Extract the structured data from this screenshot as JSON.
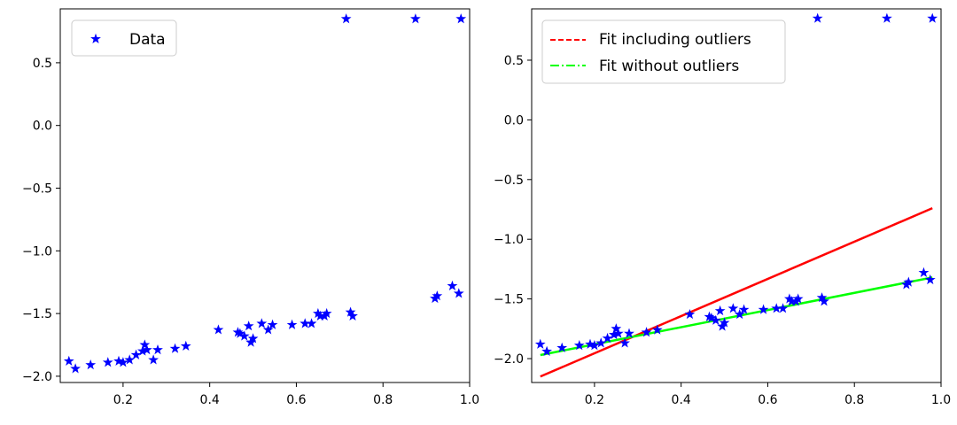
{
  "chart_data": [
    {
      "type": "scatter",
      "title": "",
      "xlabel": "",
      "ylabel": "",
      "xlim": [
        0.055,
        1.0
      ],
      "ylim": [
        -2.05,
        0.93
      ],
      "xticks": [
        0.2,
        0.4,
        0.6,
        0.8,
        1.0
      ],
      "xtick_labels": [
        "0.2",
        "0.4",
        "0.6",
        "0.8",
        "1.0"
      ],
      "yticks": [
        -2.0,
        -1.5,
        -1.0,
        -0.5,
        0.0,
        0.5
      ],
      "ytick_labels": [
        "−2.0",
        "−1.5",
        "−1.0",
        "−0.5",
        "0.0",
        "0.5"
      ],
      "grid": false,
      "legend_position": "top-left",
      "series": [
        {
          "name": "Data",
          "marker": "star",
          "color": "#0000ff",
          "x": [
            0.075,
            0.09,
            0.125,
            0.165,
            0.19,
            0.2,
            0.215,
            0.23,
            0.245,
            0.25,
            0.255,
            0.27,
            0.28,
            0.32,
            0.345,
            0.42,
            0.465,
            0.47,
            0.48,
            0.49,
            0.495,
            0.5,
            0.52,
            0.535,
            0.545,
            0.59,
            0.62,
            0.635,
            0.65,
            0.655,
            0.665,
            0.67,
            0.725,
            0.73,
            0.92,
            0.925,
            0.96,
            0.975,
            0.715,
            0.875,
            0.98
          ],
          "y": [
            -1.88,
            -1.94,
            -1.91,
            -1.89,
            -1.88,
            -1.89,
            -1.87,
            -1.83,
            -1.8,
            -1.75,
            -1.79,
            -1.87,
            -1.79,
            -1.78,
            -1.76,
            -1.63,
            -1.65,
            -1.66,
            -1.68,
            -1.6,
            -1.73,
            -1.7,
            -1.58,
            -1.63,
            -1.59,
            -1.59,
            -1.58,
            -1.58,
            -1.5,
            -1.52,
            -1.52,
            -1.5,
            -1.49,
            -1.52,
            -1.38,
            -1.36,
            -1.28,
            -1.34,
            0.85,
            0.85,
            0.85
          ]
        }
      ]
    },
    {
      "type": "line",
      "title": "",
      "xlabel": "",
      "ylabel": "",
      "xlim": [
        0.055,
        1.0
      ],
      "ylim": [
        -2.2,
        0.93
      ],
      "xticks": [
        0.2,
        0.4,
        0.6,
        0.8,
        1.0
      ],
      "xtick_labels": [
        "0.2",
        "0.4",
        "0.6",
        "0.8",
        "1.0"
      ],
      "yticks": [
        -2.0,
        -1.5,
        -1.0,
        -0.5,
        0.0,
        0.5
      ],
      "ytick_labels": [
        "−2.0",
        "−1.5",
        "−1.0",
        "−0.5",
        "0.0",
        "0.5"
      ],
      "grid": false,
      "legend_position": "top-left",
      "legend_entries": [
        {
          "name": "Fit including outliers",
          "color": "#ff0000",
          "style": "dashed"
        },
        {
          "name": "Fit without outliers",
          "color": "#00ff00",
          "style": "dashdot"
        }
      ],
      "scatter": {
        "name": "Data",
        "marker": "star",
        "color": "#0000ff",
        "x": [
          0.075,
          0.09,
          0.125,
          0.165,
          0.19,
          0.2,
          0.215,
          0.23,
          0.245,
          0.25,
          0.255,
          0.27,
          0.28,
          0.32,
          0.345,
          0.42,
          0.465,
          0.47,
          0.48,
          0.49,
          0.495,
          0.5,
          0.52,
          0.535,
          0.545,
          0.59,
          0.62,
          0.635,
          0.65,
          0.655,
          0.665,
          0.67,
          0.725,
          0.73,
          0.92,
          0.925,
          0.96,
          0.975,
          0.715,
          0.875,
          0.98
        ],
        "y": [
          -1.88,
          -1.94,
          -1.91,
          -1.89,
          -1.88,
          -1.89,
          -1.87,
          -1.83,
          -1.8,
          -1.75,
          -1.79,
          -1.87,
          -1.79,
          -1.78,
          -1.76,
          -1.63,
          -1.65,
          -1.66,
          -1.68,
          -1.6,
          -1.73,
          -1.7,
          -1.58,
          -1.63,
          -1.59,
          -1.59,
          -1.58,
          -1.58,
          -1.5,
          -1.52,
          -1.52,
          -1.5,
          -1.49,
          -1.52,
          -1.38,
          -1.36,
          -1.28,
          -1.34,
          0.85,
          0.85,
          0.85
        ]
      },
      "series": [
        {
          "name": "Fit including outliers",
          "color": "#ff0000",
          "x": [
            0.075,
            0.98
          ],
          "y": [
            -2.15,
            -0.74
          ]
        },
        {
          "name": "Fit without outliers",
          "color": "#00ff00",
          "x": [
            0.075,
            0.98
          ],
          "y": [
            -1.97,
            -1.32
          ]
        }
      ]
    }
  ]
}
